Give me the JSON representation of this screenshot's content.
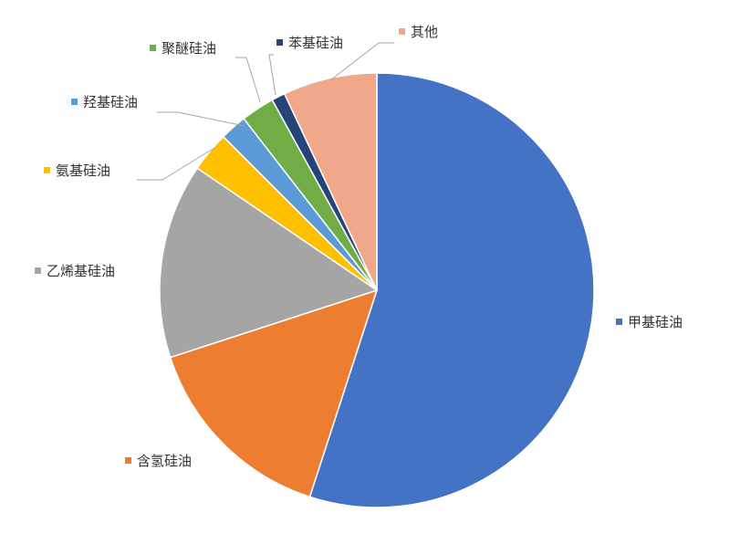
{
  "chart_data": {
    "type": "pie",
    "start": "top",
    "direction": "clockwise",
    "legend_placement": "outside labels with leader lines",
    "slices": [
      {
        "label": "甲基硅油",
        "value": 55,
        "color": "#4472C4"
      },
      {
        "label": "含氢硅油",
        "value": 15,
        "color": "#ED7D31"
      },
      {
        "label": "乙烯基硅油",
        "value": 14.5,
        "color": "#A5A5A5"
      },
      {
        "label": "氨基硅油",
        "value": 3,
        "color": "#FFC000"
      },
      {
        "label": "羟基硅油",
        "value": 2,
        "color": "#5B9BD5"
      },
      {
        "label": "聚醚硅油",
        "value": 2.5,
        "color": "#70AD47"
      },
      {
        "label": "苯基硅油",
        "value": 1,
        "color": "#264478"
      },
      {
        "label": "其他",
        "value": 7,
        "color": "#F1A78A"
      }
    ]
  }
}
